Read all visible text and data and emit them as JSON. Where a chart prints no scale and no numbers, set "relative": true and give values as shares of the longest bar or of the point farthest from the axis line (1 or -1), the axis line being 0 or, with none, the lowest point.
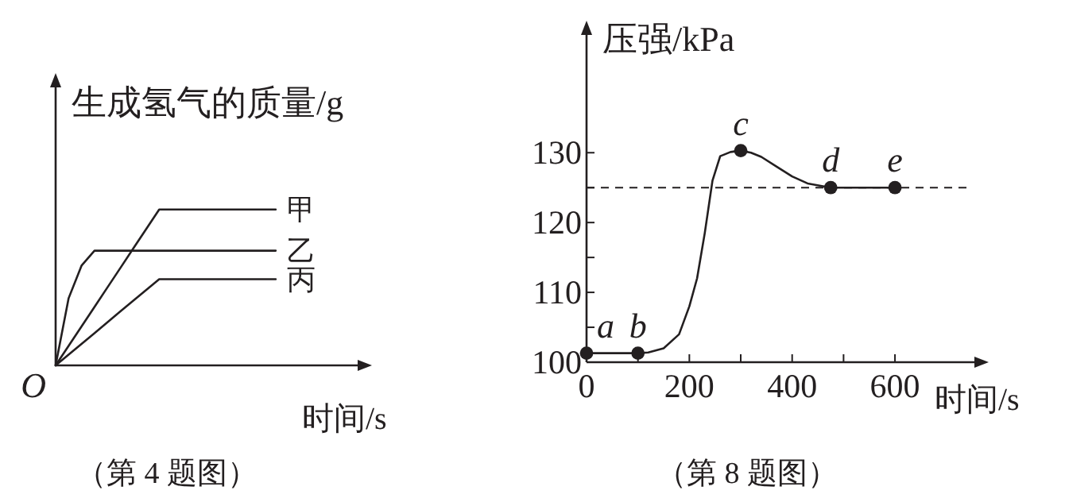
{
  "chart_data": [
    {
      "type": "line",
      "relative": true,
      "xlabel": "时间/s",
      "ylabel": "生成氢气的质量/g",
      "marker": "none",
      "grid": false,
      "categories": [
        null,
        null,
        null,
        null,
        null,
        null,
        null,
        null,
        null,
        null,
        null,
        null,
        null,
        null,
        null,
        null,
        null,
        null
      ],
      "series": [
        {
          "name": "甲",
          "color": "#231f20",
          "values": [
            0,
            0.125,
            0.25,
            0.375,
            0.5,
            0.625,
            0.75,
            0.875,
            1,
            1,
            1,
            1,
            1,
            1,
            1,
            1,
            1,
            1
          ]
        },
        {
          "name": "乙",
          "color": "#231f20",
          "values": [
            0,
            0.43,
            0.64,
            0.736,
            0.736,
            0.736,
            0.736,
            0.736,
            0.736,
            0.736,
            0.736,
            0.736,
            0.736,
            0.736,
            0.736,
            0.736,
            0.736,
            0.736
          ]
        },
        {
          "name": "丙",
          "color": "#231f20",
          "values": [
            0,
            0.069,
            0.138,
            0.207,
            0.277,
            0.346,
            0.415,
            0.484,
            0.553,
            0.553,
            0.553,
            0.553,
            0.553,
            0.553,
            0.553,
            0.553,
            0.553,
            0.553
          ]
        }
      ],
      "annotations": [
        "O",
        "（第 4 题图）"
      ]
    },
    {
      "type": "line",
      "xlabel": "时间/s",
      "ylabel": "压强/kPa",
      "grid": false,
      "marker": "none",
      "xlim": [
        0,
        770
      ],
      "ylim": [
        100,
        148
      ],
      "xticks": [
        0,
        {
          "value": 100,
          "label": null
        },
        200,
        {
          "value": 300,
          "label": null
        },
        400,
        {
          "value": 500,
          "label": null
        },
        600
      ],
      "yticks": [
        100,
        {
          "value": 105,
          "label": null
        },
        110,
        {
          "value": 115,
          "label": null
        },
        120,
        {
          "value": 125,
          "label": null
        },
        130
      ],
      "series": [
        {
          "color": "#231f20",
          "x": [
            0,
            100,
            120,
            150,
            180,
            200,
            215,
            230,
            245,
            260,
            280,
            300,
            320,
            340,
            370,
            400,
            430,
            475,
            600
          ],
          "values": [
            101.3,
            101.3,
            101.4,
            102,
            104,
            108,
            112,
            118.5,
            126,
            129.5,
            130.1,
            130.3,
            130,
            129.4,
            128,
            126.6,
            125.6,
            125,
            125
          ]
        },
        {
          "type": "scatter",
          "marker": "circle",
          "color": "#231f20",
          "x": [
            0,
            100,
            300,
            475,
            600
          ],
          "values": [
            101.3,
            101.3,
            130.3,
            125,
            125
          ]
        }
      ],
      "ref_lines": [
        {
          "axis": "y",
          "value": 125,
          "line_style": "dashed",
          "color": "#231f20"
        }
      ],
      "annotations": [
        "（第 8 题图）",
        {
          "text": "a",
          "x": 0,
          "y": 101.3
        },
        {
          "text": "b",
          "x": 100,
          "y": 101.3
        },
        {
          "text": "c",
          "x": 300,
          "y": 130.3
        },
        {
          "text": "d",
          "x": 475,
          "y": 125
        },
        {
          "text": "e",
          "x": 600,
          "y": 125
        }
      ]
    }
  ]
}
